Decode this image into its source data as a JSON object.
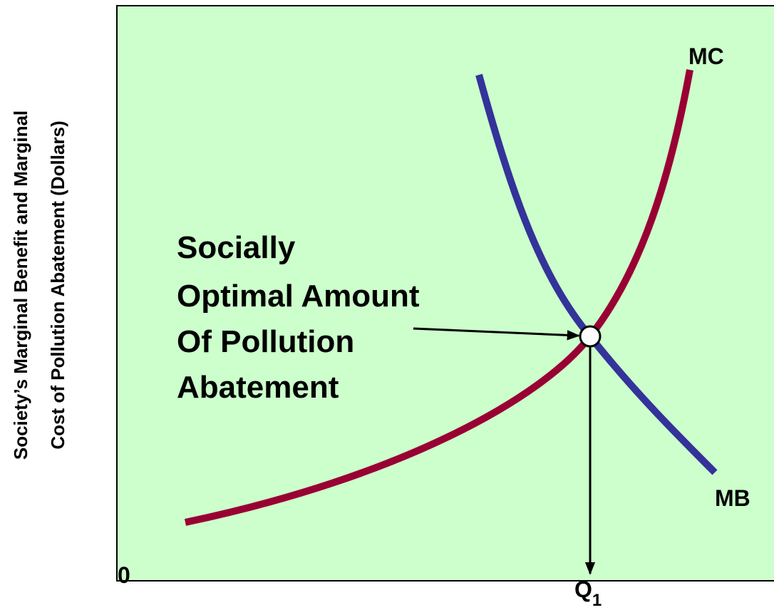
{
  "axis": {
    "y_label": [
      "Society’s Marginal Benefit and Marginal",
      "Cost of Pollution Abatement (Dollars)"
    ],
    "origin": "0",
    "x_label": {
      "text": "Q",
      "subscript": "1"
    }
  },
  "curves": [
    {
      "label": "MC"
    },
    {
      "label": "MB"
    }
  ],
  "annotation": {
    "lines": [
      "Socially",
      "Optimal Amount",
      "Of Pollution",
      "Abatement"
    ]
  }
}
